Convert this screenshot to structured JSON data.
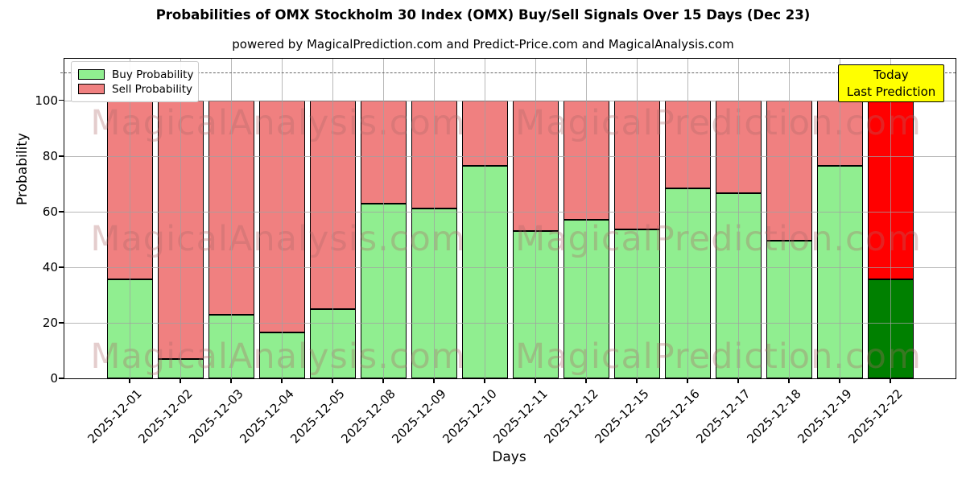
{
  "header": {
    "title": "Probabilities of OMX Stockholm 30 Index (OMX) Buy/Sell Signals Over 15 Days (Dec 23)",
    "subtitle": "powered by MagicalPrediction.com and Predict-Price.com and MagicalAnalysis.com"
  },
  "axes": {
    "ylabel": "Probability",
    "xlabel": "Days"
  },
  "legend": {
    "items": [
      {
        "label": "Buy Probability",
        "color": "#90EE90"
      },
      {
        "label": "Sell Probability",
        "color": "#F08080"
      }
    ]
  },
  "annotation": {
    "line1": "Today",
    "line2": "Last Prediction",
    "bg_color": "#FFFF00"
  },
  "watermarks": {
    "left_text": "MagicalAnalysis.com",
    "right_text": "MagicalPrediction.com"
  },
  "colors": {
    "buy": "#90EE90",
    "sell": "#F08080",
    "buy_today": "#008000",
    "sell_today": "#FF0000",
    "bar_edge": "#000000",
    "dashed_line": "#666666",
    "grid": "#b0b0b0"
  },
  "chart_data": {
    "type": "bar",
    "stacked": true,
    "title": "Probabilities of OMX Stockholm 30 Index (OMX) Buy/Sell Signals Over 15 Days (Dec 23)",
    "xlabel": "Days",
    "ylabel": "Probability",
    "categories": [
      "2025-12-01",
      "2025-12-02",
      "2025-12-03",
      "2025-12-04",
      "2025-12-05",
      "2025-12-08",
      "2025-12-09",
      "2025-12-10",
      "2025-12-11",
      "2025-12-12",
      "2025-12-15",
      "2025-12-16",
      "2025-12-17",
      "2025-12-18",
      "2025-12-19",
      "2025-12-22"
    ],
    "series": [
      {
        "name": "Buy Probability",
        "values": [
          35.5,
          7,
          23,
          16.5,
          25,
          63,
          61,
          76.5,
          53,
          57,
          53.5,
          68.5,
          66.5,
          49.5,
          76.5,
          35.5
        ]
      },
      {
        "name": "Sell Probability",
        "values": [
          64.5,
          93,
          77,
          83.5,
          75,
          37,
          39,
          23.5,
          47,
          43,
          46.5,
          31.5,
          33.5,
          50.5,
          23.5,
          64.5
        ]
      }
    ],
    "today_bar_index": 15,
    "yticks": [
      0,
      20,
      40,
      60,
      80,
      100
    ],
    "ylim": [
      0,
      115
    ],
    "dashed_line_y": 110,
    "grid": true,
    "legend_position": "upper-left"
  }
}
